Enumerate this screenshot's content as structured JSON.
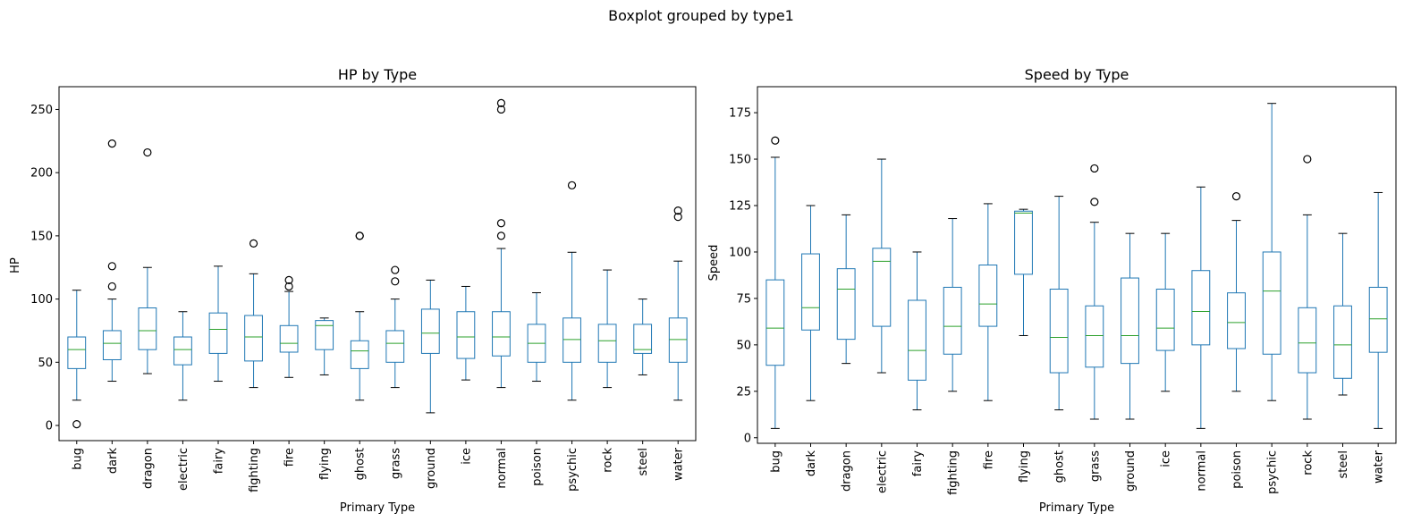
{
  "suptitle": "Boxplot grouped by type1",
  "colors": {
    "box": "#1f77b4",
    "median": "#2ca02c",
    "whisker": "#1f77b4",
    "cap": "#000000",
    "flier": "#000000"
  },
  "chart_data": [
    {
      "type": "box",
      "title": "HP by Type",
      "xlabel": "Primary Type",
      "ylabel": "HP",
      "ylim": [
        -12,
        268
      ],
      "yticks": [
        0,
        50,
        100,
        150,
        200,
        250
      ],
      "grid": false,
      "categories": [
        "bug",
        "dark",
        "dragon",
        "electric",
        "fairy",
        "fighting",
        "fire",
        "flying",
        "ghost",
        "grass",
        "ground",
        "ice",
        "normal",
        "poison",
        "psychic",
        "rock",
        "steel",
        "water"
      ],
      "boxes": [
        {
          "whislo": 20,
          "q1": 45,
          "med": 60,
          "q3": 70,
          "whishi": 107,
          "fliers": [
            1
          ]
        },
        {
          "whislo": 35,
          "q1": 52,
          "med": 65,
          "q3": 75,
          "whishi": 100,
          "fliers": [
            110,
            126,
            223
          ]
        },
        {
          "whislo": 41,
          "q1": 60,
          "med": 75,
          "q3": 93,
          "whishi": 125,
          "fliers": [
            216
          ]
        },
        {
          "whislo": 20,
          "q1": 48,
          "med": 60,
          "q3": 70,
          "whishi": 90,
          "fliers": []
        },
        {
          "whislo": 35,
          "q1": 57,
          "med": 76,
          "q3": 89,
          "whishi": 126,
          "fliers": []
        },
        {
          "whislo": 30,
          "q1": 51,
          "med": 70,
          "q3": 87,
          "whishi": 120,
          "fliers": [
            144
          ]
        },
        {
          "whislo": 38,
          "q1": 58,
          "med": 65,
          "q3": 79,
          "whishi": 106,
          "fliers": [
            110,
            115
          ]
        },
        {
          "whislo": 40,
          "q1": 60,
          "med": 79,
          "q3": 83,
          "whishi": 85,
          "fliers": []
        },
        {
          "whislo": 20,
          "q1": 45,
          "med": 59,
          "q3": 67,
          "whishi": 90,
          "fliers": [
            150,
            150
          ]
        },
        {
          "whislo": 30,
          "q1": 50,
          "med": 65,
          "q3": 75,
          "whishi": 100,
          "fliers": [
            114,
            123
          ]
        },
        {
          "whislo": 10,
          "q1": 57,
          "med": 73,
          "q3": 92,
          "whishi": 115,
          "fliers": []
        },
        {
          "whislo": 36,
          "q1": 53,
          "med": 70,
          "q3": 90,
          "whishi": 110,
          "fliers": []
        },
        {
          "whislo": 30,
          "q1": 55,
          "med": 70,
          "q3": 90,
          "whishi": 140,
          "fliers": [
            150,
            160,
            250,
            255
          ]
        },
        {
          "whislo": 35,
          "q1": 50,
          "med": 65,
          "q3": 80,
          "whishi": 105,
          "fliers": []
        },
        {
          "whislo": 20,
          "q1": 50,
          "med": 68,
          "q3": 85,
          "whishi": 137,
          "fliers": [
            190
          ]
        },
        {
          "whislo": 30,
          "q1": 50,
          "med": 67,
          "q3": 80,
          "whishi": 123,
          "fliers": []
        },
        {
          "whislo": 40,
          "q1": 57,
          "med": 60,
          "q3": 80,
          "whishi": 100,
          "fliers": []
        },
        {
          "whislo": 20,
          "q1": 50,
          "med": 68,
          "q3": 85,
          "whishi": 130,
          "fliers": [
            165,
            170
          ]
        }
      ]
    },
    {
      "type": "box",
      "title": "Speed by Type",
      "xlabel": "Primary Type",
      "ylabel": "Speed",
      "ylim": [
        -3,
        189
      ],
      "yticks": [
        0,
        25,
        50,
        75,
        100,
        125,
        150,
        175
      ],
      "grid": false,
      "categories": [
        "bug",
        "dark",
        "dragon",
        "electric",
        "fairy",
        "fighting",
        "fire",
        "flying",
        "ghost",
        "grass",
        "ground",
        "ice",
        "normal",
        "poison",
        "psychic",
        "rock",
        "steel",
        "water"
      ],
      "boxes": [
        {
          "whislo": 5,
          "q1": 39,
          "med": 59,
          "q3": 85,
          "whishi": 151,
          "fliers": [
            160
          ]
        },
        {
          "whislo": 20,
          "q1": 58,
          "med": 70,
          "q3": 99,
          "whishi": 125,
          "fliers": []
        },
        {
          "whislo": 40,
          "q1": 53,
          "med": 80,
          "q3": 91,
          "whishi": 120,
          "fliers": []
        },
        {
          "whislo": 35,
          "q1": 60,
          "med": 95,
          "q3": 102,
          "whishi": 150,
          "fliers": []
        },
        {
          "whislo": 15,
          "q1": 31,
          "med": 47,
          "q3": 74,
          "whishi": 100,
          "fliers": []
        },
        {
          "whislo": 25,
          "q1": 45,
          "med": 60,
          "q3": 81,
          "whishi": 118,
          "fliers": []
        },
        {
          "whislo": 20,
          "q1": 60,
          "med": 72,
          "q3": 93,
          "whishi": 126,
          "fliers": []
        },
        {
          "whislo": 55,
          "q1": 88,
          "med": 121,
          "q3": 122,
          "whishi": 123,
          "fliers": []
        },
        {
          "whislo": 15,
          "q1": 35,
          "med": 54,
          "q3": 80,
          "whishi": 130,
          "fliers": []
        },
        {
          "whislo": 10,
          "q1": 38,
          "med": 55,
          "q3": 71,
          "whishi": 116,
          "fliers": [
            127,
            145
          ]
        },
        {
          "whislo": 10,
          "q1": 40,
          "med": 55,
          "q3": 86,
          "whishi": 110,
          "fliers": []
        },
        {
          "whislo": 25,
          "q1": 47,
          "med": 59,
          "q3": 80,
          "whishi": 110,
          "fliers": []
        },
        {
          "whislo": 5,
          "q1": 50,
          "med": 68,
          "q3": 90,
          "whishi": 135,
          "fliers": []
        },
        {
          "whislo": 25,
          "q1": 48,
          "med": 62,
          "q3": 78,
          "whishi": 117,
          "fliers": [
            130
          ]
        },
        {
          "whislo": 20,
          "q1": 45,
          "med": 79,
          "q3": 100,
          "whishi": 180,
          "fliers": []
        },
        {
          "whislo": 10,
          "q1": 35,
          "med": 51,
          "q3": 70,
          "whishi": 120,
          "fliers": [
            150
          ]
        },
        {
          "whislo": 23,
          "q1": 32,
          "med": 50,
          "q3": 71,
          "whishi": 110,
          "fliers": []
        },
        {
          "whislo": 5,
          "q1": 46,
          "med": 64,
          "q3": 81,
          "whishi": 132,
          "fliers": []
        }
      ]
    }
  ]
}
